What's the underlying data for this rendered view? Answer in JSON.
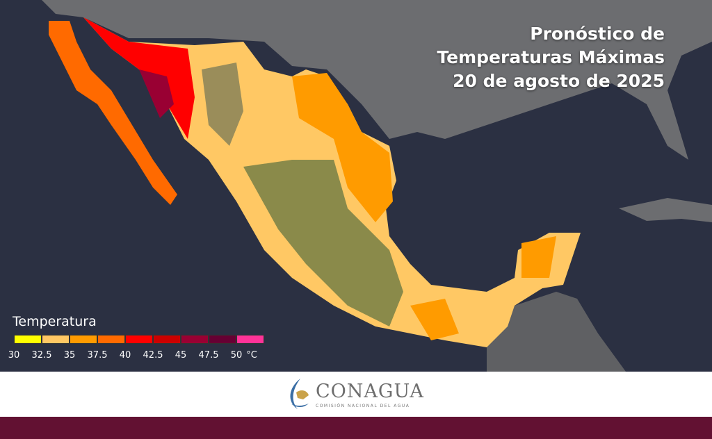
{
  "title": {
    "line1": "Pronóstico de",
    "line2": "Temperaturas Máximas",
    "line3": "20 de agosto de 2025"
  },
  "legend": {
    "title": "Temperatura",
    "colors": [
      "#ffff00",
      "#ffc864",
      "#ff9b00",
      "#ff6a00",
      "#ff0000",
      "#cc0000",
      "#990033",
      "#660033",
      "#ff3399"
    ],
    "ticks": [
      "30",
      "32.5",
      "35",
      "37.5",
      "40",
      "42.5",
      "45",
      "47.5",
      "50"
    ],
    "unit": "°C"
  },
  "footer": {
    "org_name": "CONAGUA",
    "org_subtitle": "COMISIÓN NACIONAL DEL AGUA"
  }
}
